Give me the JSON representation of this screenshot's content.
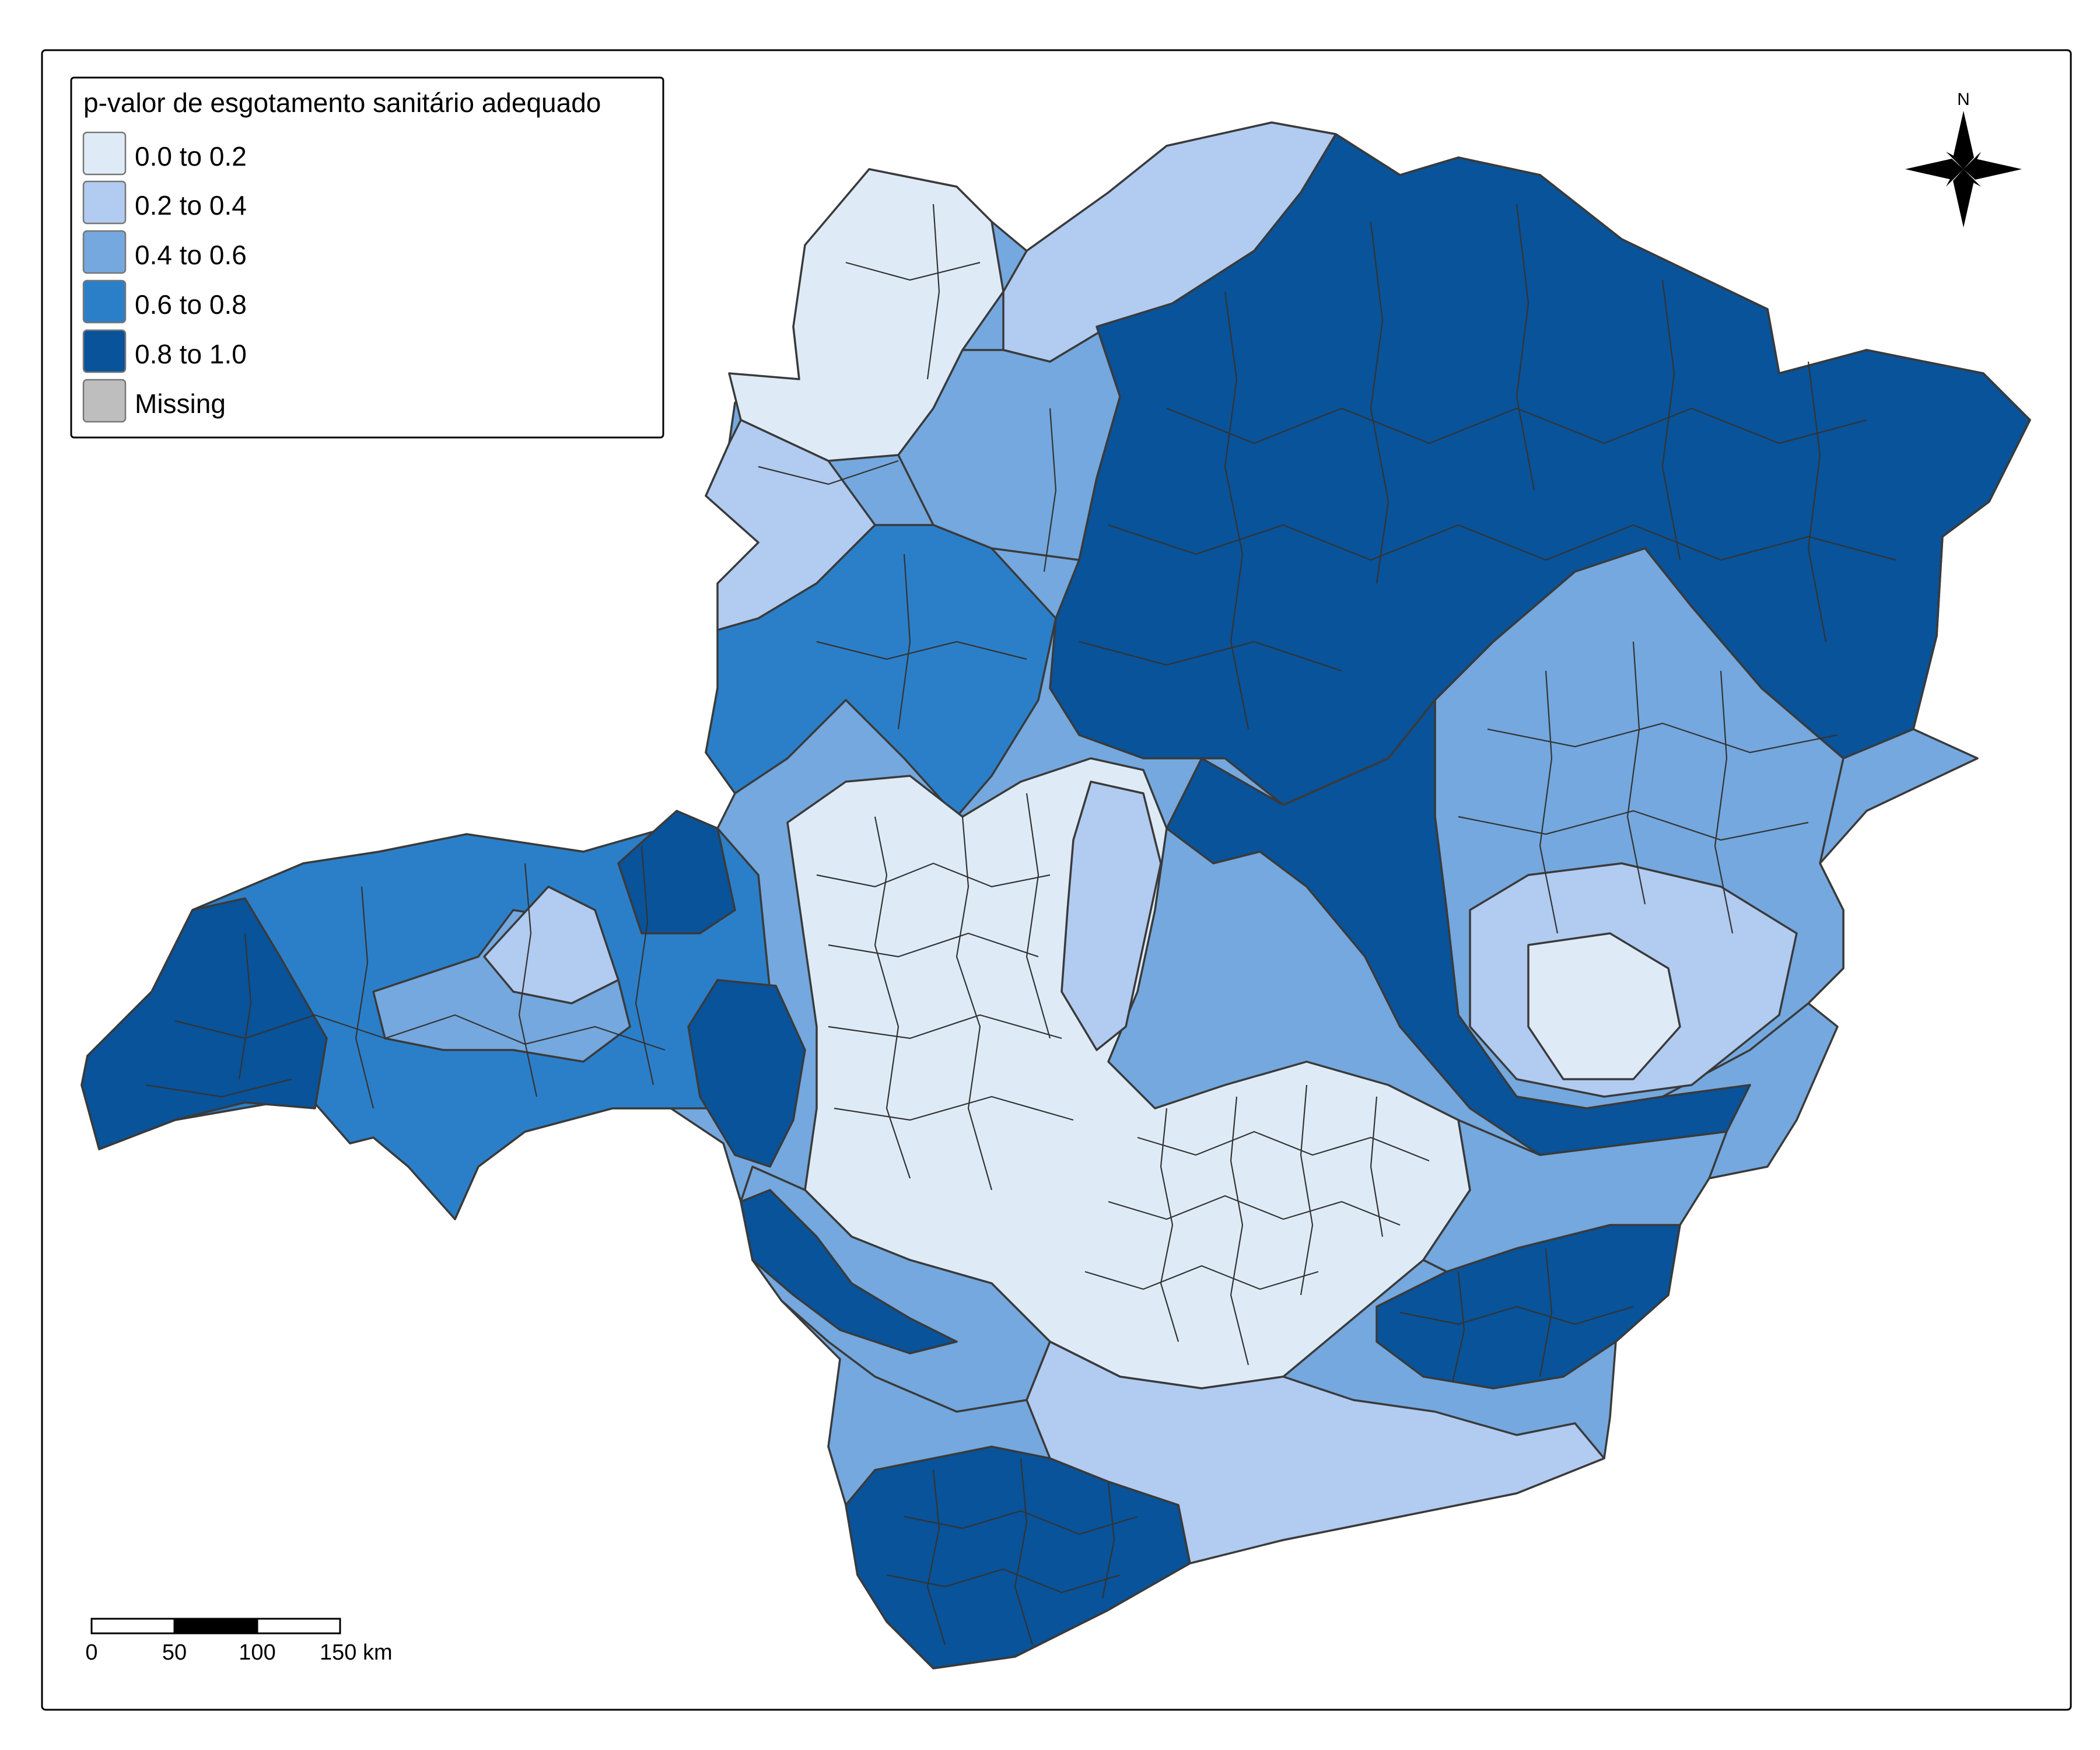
{
  "legend": {
    "title": "p-valor de esgotamento sanitário adequado",
    "items": [
      {
        "label": "0.0 to 0.2",
        "color": "#deebf7"
      },
      {
        "label": "0.2 to 0.4",
        "color": "#b1cbf1"
      },
      {
        "label": "0.4 to 0.6",
        "color": "#74a8de"
      },
      {
        "label": "0.6 to 0.8",
        "color": "#2b7fc8"
      },
      {
        "label": "0.8 to 1.0",
        "color": "#08539a"
      },
      {
        "label": "Missing",
        "color": "#bebebe"
      }
    ]
  },
  "north_arrow": {
    "label": "N",
    "icon": "compass-star-icon"
  },
  "scale_bar": {
    "ticks": [
      "0",
      "50",
      "100",
      "150 km"
    ]
  },
  "colors": {
    "frame": "#000000",
    "boundary": "#333333",
    "background": "#ffffff"
  }
}
